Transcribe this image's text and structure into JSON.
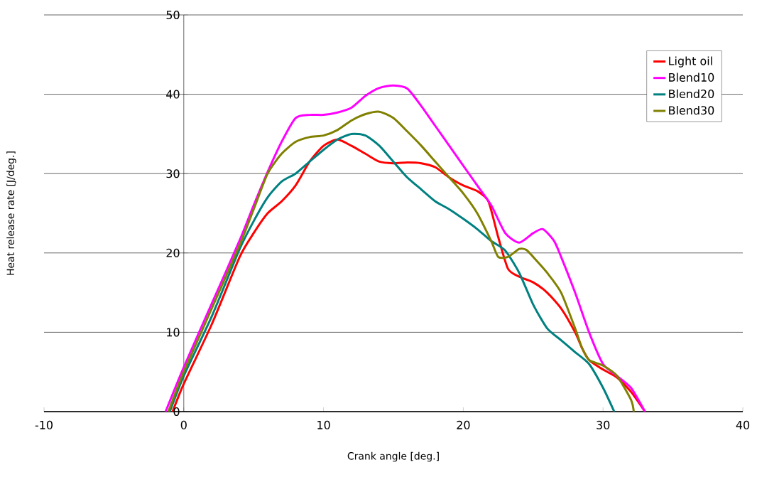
{
  "chart_data": {
    "type": "line",
    "xlabel": "Crank angle [deg.]",
    "ylabel": "Heat release rate [J/deg.]",
    "xlim": [
      -10,
      40
    ],
    "xticks": [
      -10,
      0,
      10,
      20,
      30,
      40
    ],
    "ylim": [
      0,
      50
    ],
    "yticks": [
      0,
      10,
      20,
      30,
      40,
      50
    ],
    "grid": "y",
    "legend": "top right",
    "marker": "none",
    "line_style": "solid",
    "series": [
      {
        "name": "Light oil",
        "color": "#ff0000",
        "x": [
          -0.8,
          0,
          2,
          4,
          5,
          6,
          7,
          8,
          9,
          10,
          11,
          12,
          13,
          14,
          15,
          16,
          17,
          18,
          19,
          20,
          21,
          21.8,
          22.5,
          23.2,
          24,
          25,
          26,
          27,
          28,
          28.5,
          29,
          30,
          31,
          32,
          33
        ],
        "values": [
          0,
          3.5,
          11,
          19.5,
          22.5,
          25,
          26.5,
          28.5,
          31.5,
          33.5,
          34.3,
          33.5,
          32.5,
          31.5,
          31.3,
          31.4,
          31.3,
          30.8,
          29.5,
          28.5,
          27.8,
          26.5,
          22,
          18,
          17,
          16.3,
          15,
          13,
          10,
          8,
          6.5,
          5.3,
          4.3,
          2.5,
          0
        ]
      },
      {
        "name": "Blend10",
        "color": "#ff00ff",
        "x": [
          -1.3,
          0,
          2,
          4,
          5,
          6,
          7,
          8,
          9,
          10,
          11,
          12,
          13,
          14,
          15,
          16,
          17,
          18,
          19,
          20,
          21,
          22,
          23,
          24,
          25,
          25.7,
          26.5,
          27,
          28,
          29,
          30,
          31,
          32,
          33
        ],
        "values": [
          0,
          5.6,
          13.6,
          21.6,
          26,
          30.2,
          34,
          37,
          37.4,
          37.4,
          37.7,
          38.3,
          39.8,
          40.8,
          41.1,
          40.7,
          38.5,
          36,
          33.5,
          31,
          28.5,
          26,
          22.5,
          21.3,
          22.5,
          23,
          21.5,
          19.5,
          15,
          10,
          6,
          4.5,
          3,
          0
        ]
      },
      {
        "name": "Blend20",
        "color": "#008080",
        "x": [
          -1,
          0,
          2,
          4,
          5,
          6,
          7,
          8,
          9,
          10,
          11,
          12,
          13,
          14,
          15,
          16,
          17,
          18,
          19,
          20,
          21,
          22,
          23,
          24,
          25,
          26,
          27,
          28,
          29,
          30,
          30.8
        ],
        "values": [
          0,
          4.5,
          12,
          20.5,
          24,
          27,
          29,
          30,
          31.5,
          33,
          34.3,
          35,
          34.8,
          33.5,
          31.5,
          29.5,
          28,
          26.5,
          25.5,
          24.3,
          23,
          21.5,
          20.3,
          17.5,
          13.5,
          10.5,
          9,
          7.5,
          6,
          3,
          0
        ]
      },
      {
        "name": "Blend30",
        "color": "#808000",
        "x": [
          -1.1,
          0,
          2,
          4,
          5,
          6,
          7,
          8,
          9,
          10,
          11,
          12,
          13,
          14,
          15,
          16,
          17,
          18,
          19,
          20,
          21,
          22,
          22.5,
          23.2,
          24,
          24.5,
          25,
          26,
          27,
          28,
          28.5,
          29,
          30,
          31,
          32,
          32.2
        ],
        "values": [
          0,
          5,
          13,
          21,
          25.5,
          30,
          32.5,
          34,
          34.6,
          34.8,
          35.5,
          36.7,
          37.5,
          37.8,
          37,
          35.3,
          33.5,
          31.5,
          29.5,
          27.5,
          25,
          21.5,
          19.5,
          19.5,
          20.5,
          20.4,
          19.5,
          17.5,
          15,
          10.5,
          8,
          6.5,
          5.8,
          4.5,
          1.5,
          0
        ]
      }
    ]
  }
}
